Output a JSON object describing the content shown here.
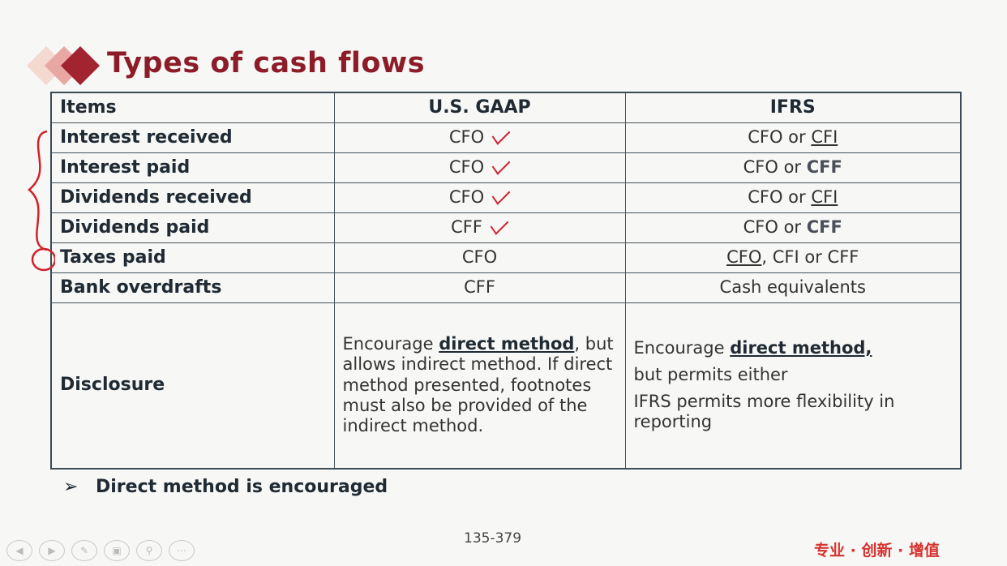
{
  "slide": {
    "title": "Types of cash flows",
    "page_number": "135-379",
    "slogan": "专业 · 创新 · 增值",
    "bullet": "Direct method is encouraged",
    "bullet_icon": "arrow-bullet-icon"
  },
  "table": {
    "headers": [
      "Items",
      "U.S. GAAP",
      "IFRS"
    ],
    "rows": [
      {
        "item": "Interest received",
        "gaap": "CFO",
        "ifrs_a": "CFO or ",
        "ifrs_b": "CFI",
        "checked": true
      },
      {
        "item": "Interest paid",
        "gaap": "CFO",
        "ifrs_a": "CFO or ",
        "ifrs_b": "CFF",
        "checked": true
      },
      {
        "item": "Dividends received",
        "gaap": "CFO",
        "ifrs_a": "CFO or ",
        "ifrs_b": "CFI",
        "checked": true
      },
      {
        "item": "Dividends paid",
        "gaap": "CFF",
        "ifrs_a": "CFO or ",
        "ifrs_b": "CFF",
        "checked": true
      },
      {
        "item": "Taxes paid",
        "gaap": "CFO",
        "ifrs_a": "CFO",
        "ifrs_b": ", CFI or CFF",
        "checked": false
      },
      {
        "item": "Bank overdrafts",
        "gaap": "CFF",
        "ifrs": "Cash equivalents",
        "checked": false
      }
    ],
    "disclosure": {
      "label": "Disclosure",
      "gaap_pre": "Encourage ",
      "gaap_em": "direct method",
      "gaap_post": ", but allows indirect method. If direct method presented, footnotes must also be provided of the indirect method.",
      "ifrs_pre": "Encourage ",
      "ifrs_em": "direct method,",
      "ifrs_line2": "but permits either",
      "ifrs_line3": "IFRS permits more flexibility in reporting"
    }
  },
  "nav_icons": [
    "prev-icon",
    "next-icon",
    "pen-icon",
    "slides-icon",
    "zoom-icon",
    "more-icon"
  ]
}
